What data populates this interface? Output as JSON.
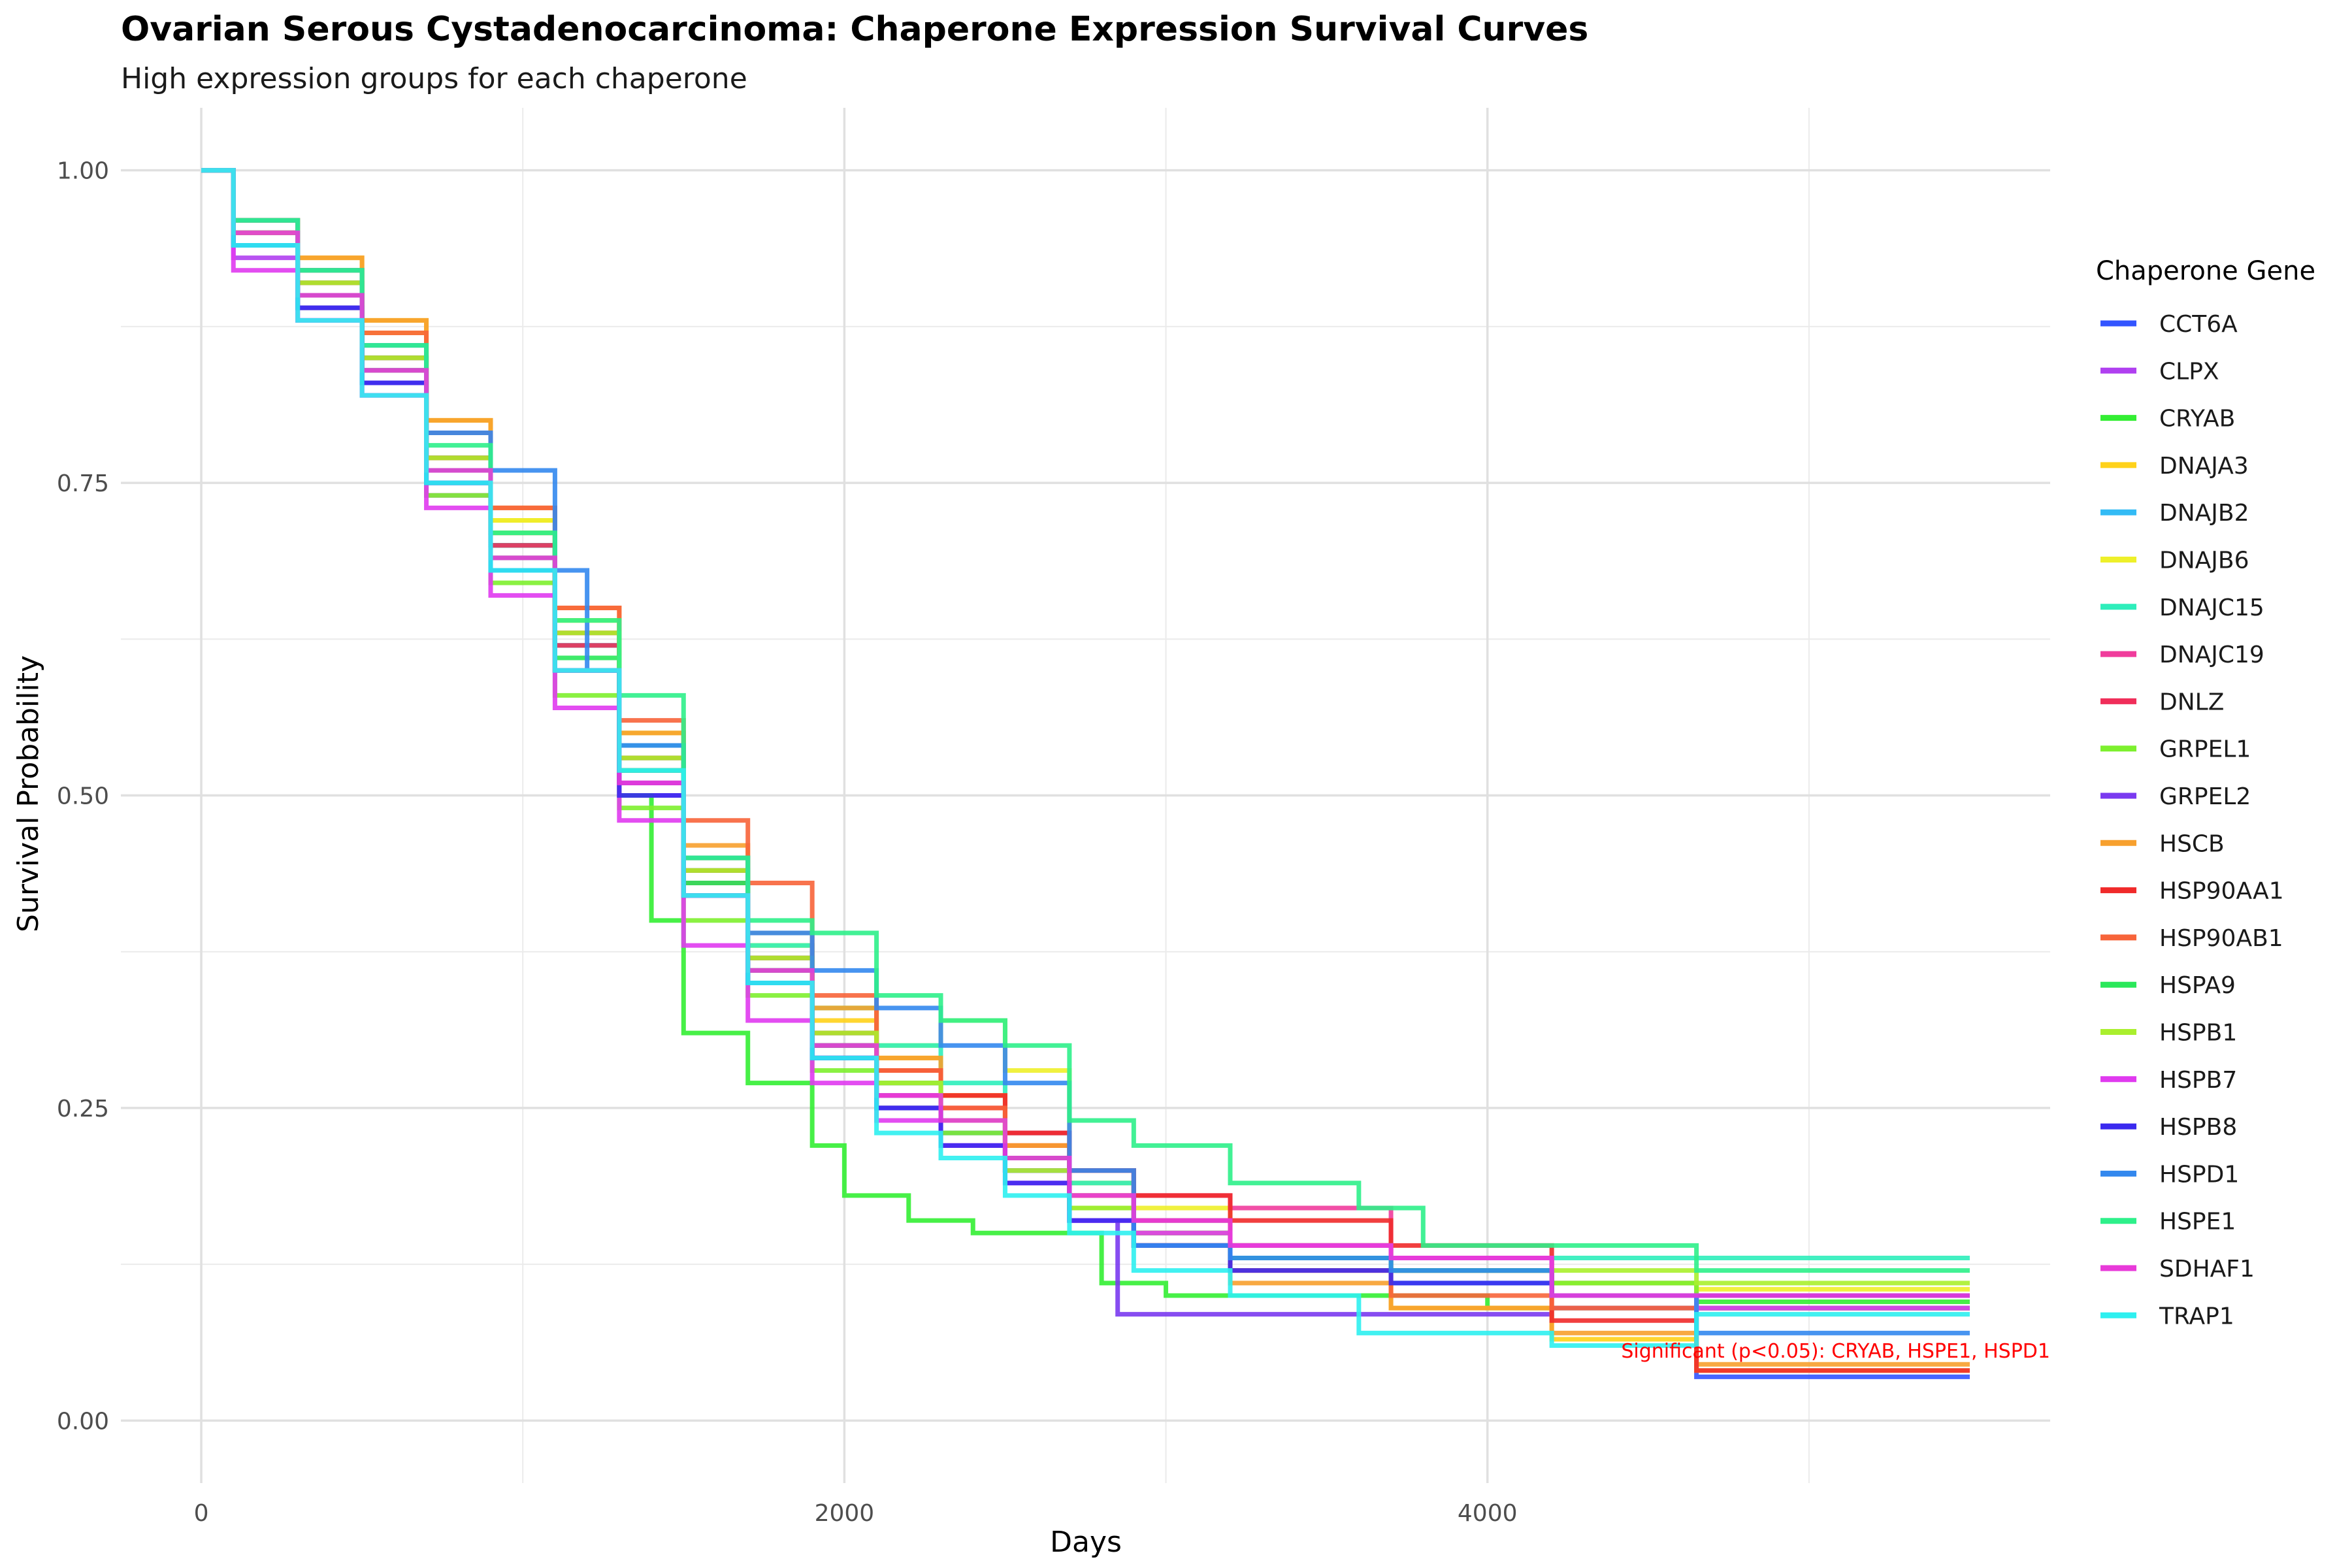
{
  "chart_data": {
    "type": "line",
    "title": "Ovarian Serous Cystadenocarcinoma: Chaperone Expression Survival Curves",
    "subtitle": "High expression groups for each chaperone",
    "xlabel": "Days",
    "ylabel": "Survival Probability",
    "xlim": [
      -250,
      5750
    ],
    "ylim": [
      -0.05,
      1.05
    ],
    "x_ticks": [
      0,
      2000,
      4000
    ],
    "x_tick_labels": [
      "0",
      "2000",
      "4000"
    ],
    "y_ticks": [
      0,
      0.25,
      0.5,
      0.75,
      1.0
    ],
    "y_tick_labels": [
      "0.00",
      "0.25",
      "0.50",
      "0.75",
      "1.00"
    ],
    "grid": true,
    "legend": {
      "title": "Chaperone Gene",
      "position": "right"
    },
    "annotation": {
      "text": "Significant (p<0.05): CRYAB, HSPE1, HSPD1",
      "x": 5750,
      "y": 0.05,
      "color": "#ff0000"
    },
    "series": [
      {
        "name": "CCT6A",
        "color": "#3355ff",
        "x": [
          0,
          100,
          300,
          500,
          700,
          900,
          1100,
          1300,
          1500,
          1700,
          1900,
          2100,
          2300,
          2500,
          2700,
          2900,
          3200,
          3700,
          4200,
          4650,
          5500
        ],
        "y": [
          1.0,
          0.95,
          0.9,
          0.84,
          0.76,
          0.7,
          0.62,
          0.52,
          0.43,
          0.36,
          0.3,
          0.26,
          0.23,
          0.2,
          0.16,
          0.14,
          0.13,
          0.12,
          0.1,
          0.035,
          0.035
        ]
      },
      {
        "name": "CLPX",
        "color": "#b040f0",
        "x": [
          0,
          100,
          300,
          500,
          700,
          900,
          1100,
          1300,
          1500,
          1700,
          1900,
          2100,
          2300,
          2500,
          2700,
          2900,
          3200,
          3700,
          4200,
          4650,
          5500
        ],
        "y": [
          1.0,
          0.93,
          0.88,
          0.82,
          0.74,
          0.68,
          0.6,
          0.5,
          0.42,
          0.35,
          0.29,
          0.25,
          0.22,
          0.2,
          0.16,
          0.14,
          0.13,
          0.12,
          0.11,
          0.1,
          0.1
        ]
      },
      {
        "name": "CRYAB",
        "color": "#33ee33",
        "x": [
          0,
          100,
          300,
          500,
          700,
          900,
          1100,
          1300,
          1400,
          1500,
          1700,
          1900,
          2000,
          2200,
          2400,
          2600,
          2800,
          3000,
          3500,
          4000,
          4650,
          5500
        ],
        "y": [
          1.0,
          0.95,
          0.9,
          0.85,
          0.77,
          0.7,
          0.6,
          0.5,
          0.4,
          0.31,
          0.27,
          0.22,
          0.18,
          0.16,
          0.15,
          0.15,
          0.11,
          0.1,
          0.1,
          0.09,
          0.095,
          0.095
        ]
      },
      {
        "name": "DNAJA3",
        "color": "#ffd21a",
        "x": [
          0,
          100,
          300,
          500,
          700,
          900,
          1100,
          1300,
          1500,
          1700,
          1900,
          2100,
          2300,
          2500,
          2700,
          2900,
          3200,
          3700,
          4200,
          4650,
          5500
        ],
        "y": [
          1.0,
          0.96,
          0.93,
          0.88,
          0.8,
          0.72,
          0.64,
          0.54,
          0.45,
          0.38,
          0.32,
          0.29,
          0.26,
          0.22,
          0.19,
          0.15,
          0.12,
          0.09,
          0.065,
          0.04,
          0.04
        ]
      },
      {
        "name": "DNAJB2",
        "color": "#33bbf5",
        "x": [
          0,
          100,
          300,
          500,
          700,
          900,
          1100,
          1300,
          1500,
          1700,
          1900,
          2100,
          2300,
          2500,
          2700,
          2900,
          3200,
          3700,
          4200,
          4650,
          5500
        ],
        "y": [
          1.0,
          0.95,
          0.91,
          0.85,
          0.77,
          0.7,
          0.62,
          0.53,
          0.44,
          0.37,
          0.31,
          0.27,
          0.24,
          0.21,
          0.18,
          0.15,
          0.13,
          0.11,
          0.1,
          0.09,
          0.09
        ]
      },
      {
        "name": "DNAJB6",
        "color": "#eef02a",
        "x": [
          0,
          100,
          300,
          500,
          700,
          900,
          1100,
          1300,
          1500,
          1700,
          1900,
          2100,
          2300,
          2500,
          2700,
          2900,
          3200,
          3700,
          4200,
          4650,
          5500
        ],
        "y": [
          1.0,
          0.96,
          0.92,
          0.87,
          0.79,
          0.72,
          0.64,
          0.55,
          0.45,
          0.38,
          0.33,
          0.3,
          0.32,
          0.28,
          0.2,
          0.17,
          0.14,
          0.12,
          0.11,
          0.105,
          0.105
        ]
      },
      {
        "name": "DNAJC15",
        "color": "#2eeebb",
        "x": [
          0,
          100,
          300,
          500,
          700,
          900,
          1100,
          1300,
          1500,
          1700,
          1900,
          2100,
          2300,
          2500,
          2700,
          2900,
          3200,
          3700,
          4200,
          4650,
          5500
        ],
        "y": [
          1.0,
          0.95,
          0.9,
          0.84,
          0.76,
          0.7,
          0.62,
          0.54,
          0.44,
          0.38,
          0.33,
          0.3,
          0.27,
          0.23,
          0.19,
          0.16,
          0.14,
          0.13,
          0.13,
          0.13,
          0.13
        ]
      },
      {
        "name": "DNAJC19",
        "color": "#f03c9c",
        "x": [
          0,
          100,
          300,
          500,
          700,
          900,
          1100,
          1300,
          1500,
          1700,
          1900,
          2100,
          2300,
          2500,
          2700,
          2900,
          3200,
          3700,
          4200,
          4650,
          5500
        ],
        "y": [
          1.0,
          0.94,
          0.89,
          0.83,
          0.75,
          0.68,
          0.6,
          0.51,
          0.42,
          0.35,
          0.29,
          0.26,
          0.24,
          0.23,
          0.2,
          0.18,
          0.17,
          0.13,
          0.1,
          0.09,
          0.09
        ]
      },
      {
        "name": "DNLZ",
        "color": "#f02e5a",
        "x": [
          0,
          100,
          300,
          500,
          700,
          900,
          1100,
          1300,
          1500,
          1700,
          1900,
          2100,
          2300,
          2500,
          2700,
          2900,
          3200,
          3700,
          4200,
          4650,
          5500
        ],
        "y": [
          1.0,
          0.95,
          0.9,
          0.84,
          0.77,
          0.7,
          0.62,
          0.52,
          0.43,
          0.36,
          0.3,
          0.27,
          0.25,
          0.22,
          0.18,
          0.16,
          0.14,
          0.12,
          0.1,
          0.09,
          0.09
        ]
      },
      {
        "name": "GRPEL1",
        "color": "#7df02e",
        "x": [
          0,
          100,
          300,
          500,
          700,
          900,
          1100,
          1300,
          1500,
          1700,
          1900,
          2100,
          2300,
          2500,
          2700,
          2900,
          3200,
          3700,
          4200,
          4650,
          5500
        ],
        "y": [
          1.0,
          0.94,
          0.89,
          0.83,
          0.74,
          0.67,
          0.58,
          0.49,
          0.4,
          0.34,
          0.28,
          0.25,
          0.23,
          0.2,
          0.17,
          0.15,
          0.13,
          0.12,
          0.11,
          0.1,
          0.1
        ]
      },
      {
        "name": "GRPEL2",
        "color": "#7a3af0",
        "x": [
          0,
          100,
          300,
          500,
          700,
          900,
          1100,
          1300,
          1500,
          1700,
          1900,
          2100,
          2300,
          2500,
          2700,
          2850,
          3200,
          3700,
          4200,
          4650,
          5500
        ],
        "y": [
          1.0,
          0.94,
          0.89,
          0.83,
          0.75,
          0.68,
          0.6,
          0.51,
          0.42,
          0.35,
          0.29,
          0.25,
          0.22,
          0.2,
          0.16,
          0.085,
          0.085,
          0.085,
          0.09,
          0.09,
          0.09
        ]
      },
      {
        "name": "HSCB",
        "color": "#f7a02e",
        "x": [
          0,
          100,
          300,
          500,
          700,
          900,
          1100,
          1300,
          1500,
          1700,
          1900,
          2100,
          2300,
          2500,
          2700,
          2900,
          3200,
          3700,
          4200,
          4650,
          5500
        ],
        "y": [
          1.0,
          0.96,
          0.93,
          0.88,
          0.8,
          0.73,
          0.65,
          0.55,
          0.46,
          0.39,
          0.33,
          0.29,
          0.26,
          0.22,
          0.18,
          0.14,
          0.11,
          0.09,
          0.07,
          0.045,
          0.045
        ]
      },
      {
        "name": "HSP90AA1",
        "color": "#f02a2a",
        "x": [
          0,
          100,
          300,
          500,
          700,
          900,
          1100,
          1300,
          1500,
          1700,
          1900,
          2100,
          2300,
          2500,
          2700,
          2900,
          3200,
          3700,
          4200,
          4650,
          5500
        ],
        "y": [
          1.0,
          0.95,
          0.91,
          0.85,
          0.77,
          0.71,
          0.63,
          0.53,
          0.44,
          0.37,
          0.31,
          0.28,
          0.26,
          0.23,
          0.2,
          0.18,
          0.16,
          0.14,
          0.08,
          0.04,
          0.04
        ]
      },
      {
        "name": "HSP90AB1",
        "color": "#f7643a",
        "x": [
          0,
          100,
          300,
          500,
          700,
          900,
          1100,
          1300,
          1500,
          1700,
          1900,
          2100,
          2300,
          2500,
          2700,
          2900,
          3200,
          3700,
          4200,
          4650,
          5500
        ],
        "y": [
          1.0,
          0.96,
          0.92,
          0.87,
          0.79,
          0.73,
          0.65,
          0.56,
          0.48,
          0.43,
          0.34,
          0.28,
          0.25,
          0.21,
          0.17,
          0.14,
          0.12,
          0.1,
          0.09,
          0.09,
          0.09
        ]
      },
      {
        "name": "HSPA9",
        "color": "#2ae85a",
        "x": [
          0,
          100,
          300,
          500,
          700,
          900,
          1100,
          1300,
          1500,
          1700,
          1900,
          2100,
          2300,
          2500,
          2700,
          2900,
          3200,
          3700,
          4200,
          4650,
          5500
        ],
        "y": [
          1.0,
          0.95,
          0.9,
          0.84,
          0.76,
          0.69,
          0.61,
          0.52,
          0.43,
          0.36,
          0.3,
          0.27,
          0.24,
          0.21,
          0.17,
          0.15,
          0.13,
          0.12,
          0.1,
          0.09,
          0.09
        ]
      },
      {
        "name": "HSPB1",
        "color": "#aaef2e",
        "x": [
          0,
          100,
          300,
          500,
          700,
          900,
          1100,
          1300,
          1500,
          1700,
          1900,
          2100,
          2300,
          2500,
          2700,
          2900,
          3200,
          3700,
          4200,
          4650,
          5500
        ],
        "y": [
          1.0,
          0.95,
          0.91,
          0.85,
          0.77,
          0.71,
          0.63,
          0.53,
          0.44,
          0.37,
          0.31,
          0.27,
          0.24,
          0.2,
          0.17,
          0.15,
          0.14,
          0.13,
          0.12,
          0.11,
          0.11
        ]
      },
      {
        "name": "HSPB7",
        "color": "#e03aef",
        "x": [
          0,
          100,
          300,
          500,
          700,
          900,
          1100,
          1300,
          1500,
          1700,
          1900,
          2100,
          2300,
          2500,
          2700,
          2900,
          3200,
          3700,
          4200,
          4650,
          5500
        ],
        "y": [
          1.0,
          0.92,
          0.88,
          0.82,
          0.73,
          0.66,
          0.57,
          0.48,
          0.38,
          0.32,
          0.27,
          0.24,
          0.22,
          0.19,
          0.16,
          0.15,
          0.14,
          0.13,
          0.1,
          0.09,
          0.09
        ]
      },
      {
        "name": "HSPB8",
        "color": "#3a2aef",
        "x": [
          0,
          100,
          300,
          500,
          700,
          900,
          1100,
          1300,
          1500,
          1700,
          1900,
          2100,
          2300,
          2500,
          2700,
          2900,
          3200,
          3700,
          4200,
          4650,
          5500
        ],
        "y": [
          1.0,
          0.94,
          0.89,
          0.83,
          0.75,
          0.68,
          0.6,
          0.5,
          0.42,
          0.35,
          0.29,
          0.25,
          0.22,
          0.19,
          0.16,
          0.14,
          0.12,
          0.11,
          0.1,
          0.1,
          0.1
        ]
      },
      {
        "name": "HSPD1",
        "color": "#3388ee",
        "x": [
          0,
          100,
          300,
          500,
          700,
          900,
          1100,
          1200,
          1300,
          1500,
          1700,
          1900,
          2100,
          2300,
          2500,
          2700,
          2900,
          3200,
          3700,
          4200,
          4650,
          5500
        ],
        "y": [
          1.0,
          0.96,
          0.92,
          0.86,
          0.79,
          0.76,
          0.68,
          0.6,
          0.54,
          0.45,
          0.39,
          0.36,
          0.33,
          0.3,
          0.27,
          0.2,
          0.14,
          0.13,
          0.12,
          0.1,
          0.07,
          0.07
        ]
      },
      {
        "name": "HSPE1",
        "color": "#2ef08a",
        "x": [
          0,
          100,
          300,
          500,
          700,
          900,
          1100,
          1300,
          1500,
          1700,
          1900,
          2100,
          2300,
          2500,
          2700,
          2900,
          3200,
          3600,
          3800,
          4200,
          4650,
          5500
        ],
        "y": [
          1.0,
          0.96,
          0.92,
          0.86,
          0.78,
          0.71,
          0.64,
          0.58,
          0.45,
          0.4,
          0.39,
          0.34,
          0.32,
          0.3,
          0.24,
          0.22,
          0.19,
          0.17,
          0.14,
          0.14,
          0.12,
          0.12
        ]
      },
      {
        "name": "SDHAF1",
        "color": "#e83ad9",
        "x": [
          0,
          100,
          300,
          500,
          700,
          900,
          1100,
          1300,
          1500,
          1700,
          1900,
          2100,
          2300,
          2500,
          2700,
          2900,
          3200,
          3700,
          4200,
          4650,
          5500
        ],
        "y": [
          1.0,
          0.95,
          0.9,
          0.84,
          0.76,
          0.69,
          0.6,
          0.51,
          0.42,
          0.36,
          0.3,
          0.26,
          0.24,
          0.21,
          0.18,
          0.16,
          0.14,
          0.13,
          0.1,
          0.1,
          0.1
        ]
      },
      {
        "name": "TRAP1",
        "color": "#2ef0f0",
        "x": [
          0,
          100,
          300,
          500,
          700,
          900,
          1100,
          1300,
          1500,
          1700,
          1900,
          2100,
          2300,
          2500,
          2700,
          2900,
          3200,
          3600,
          4200,
          4650,
          5500
        ],
        "y": [
          1.0,
          0.94,
          0.88,
          0.82,
          0.75,
          0.68,
          0.6,
          0.52,
          0.42,
          0.35,
          0.29,
          0.23,
          0.21,
          0.18,
          0.15,
          0.12,
          0.1,
          0.07,
          0.06,
          0.085,
          0.085
        ]
      }
    ]
  }
}
